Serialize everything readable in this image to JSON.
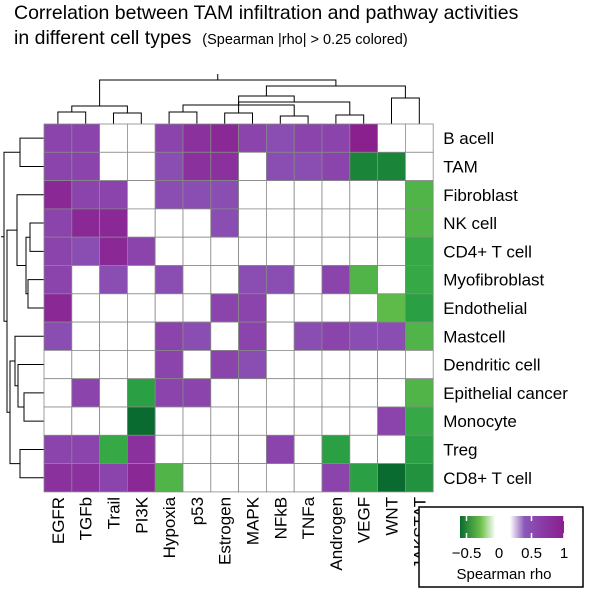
{
  "title": {
    "line1": "Correlation between TAM infiltration and  pathway activities",
    "line2": "in different cell types",
    "note": "(Spearman |rho| > 0.25 colored)"
  },
  "colors": {
    "green_strong": "#0a6b30",
    "green_mid": "#2fa545",
    "green_light": "#6cc04a",
    "purple_light": "#8a58b8",
    "purple_mid": "#8a3aa6",
    "purple_strong": "#8a1f8e",
    "neutral": "#ffffff",
    "grid": "#888888"
  },
  "legend": {
    "title": "Spearman rho",
    "ticks": [
      "−0.5",
      "0",
      "0.5",
      "1"
    ]
  },
  "chart_data": {
    "type": "heatmap",
    "title": "Correlation between TAM infiltration and  pathway activities in different cell types (Spearman |rho| > 0.25 colored)",
    "colorbar_label": "Spearman rho",
    "colorbar_ticks": [
      -0.5,
      0,
      0.5,
      1
    ],
    "threshold": "|rho| > 0.25",
    "columns": [
      "EGFR",
      "TGFb",
      "Trail",
      "PI3K",
      "Hypoxia",
      "p53",
      "Estrogen",
      "MAPK",
      "NFkB",
      "TNFa",
      "Androgen",
      "VEGF",
      "WNT",
      "JAKSTAT"
    ],
    "rows": [
      "B acell",
      "TAM",
      "Fibroblast",
      "NK cell",
      "CD4+ T cell",
      "Myofibroblast",
      "Endothelial",
      "Mastcell",
      "Dendritic cell",
      "Epithelial cancer",
      "Monocyte",
      "Treg",
      "CD8+ T cell"
    ],
    "values": [
      [
        0.6,
        0.6,
        0,
        0,
        0.6,
        0.7,
        0.75,
        0.6,
        0.55,
        0.6,
        0.6,
        0.8,
        0,
        0
      ],
      [
        0.6,
        0.6,
        0,
        0,
        0.55,
        0.7,
        0.7,
        0,
        0.55,
        0.55,
        0.6,
        -0.7,
        -0.7,
        0
      ],
      [
        0.75,
        0.6,
        0.6,
        0,
        0.55,
        0.55,
        0.55,
        0,
        0,
        0,
        0,
        0,
        0,
        -0.45
      ],
      [
        0.6,
        0.75,
        0.75,
        0,
        0,
        0,
        0.55,
        0,
        0,
        0,
        0,
        0,
        0,
        -0.45
      ],
      [
        0.6,
        0.55,
        0.75,
        0.6,
        0,
        0,
        0,
        0,
        0,
        0,
        0,
        0,
        0,
        -0.55
      ],
      [
        0.6,
        0,
        0.55,
        0,
        0.55,
        0,
        0,
        0.55,
        0.55,
        0,
        0.6,
        -0.45,
        0,
        -0.55
      ],
      [
        0.75,
        0,
        0,
        0,
        0,
        0,
        0.6,
        0.6,
        0,
        0,
        0,
        0,
        -0.4,
        -0.6
      ],
      [
        0.55,
        0,
        0,
        0,
        0.6,
        0.55,
        0,
        0.6,
        0,
        0.55,
        0.6,
        0.55,
        0.55,
        -0.45
      ],
      [
        0,
        0,
        0,
        0,
        0.6,
        0,
        0.6,
        0.55,
        0,
        0,
        0,
        0,
        0,
        0
      ],
      [
        0,
        0.6,
        0,
        -0.6,
        0.6,
        0.6,
        0,
        0,
        0,
        0,
        0,
        0,
        0,
        -0.45
      ],
      [
        0,
        0,
        0,
        -0.8,
        0,
        0,
        0,
        0,
        0,
        0,
        0,
        0,
        0.6,
        -0.55
      ],
      [
        0.6,
        0.6,
        -0.55,
        0.7,
        0,
        0,
        0,
        0,
        0.6,
        0,
        -0.6,
        0,
        0,
        -0.6
      ],
      [
        0.7,
        0.7,
        0.6,
        0.75,
        -0.45,
        0,
        0,
        0,
        0,
        0,
        0.6,
        -0.6,
        -0.8,
        -0.65
      ]
    ]
  }
}
